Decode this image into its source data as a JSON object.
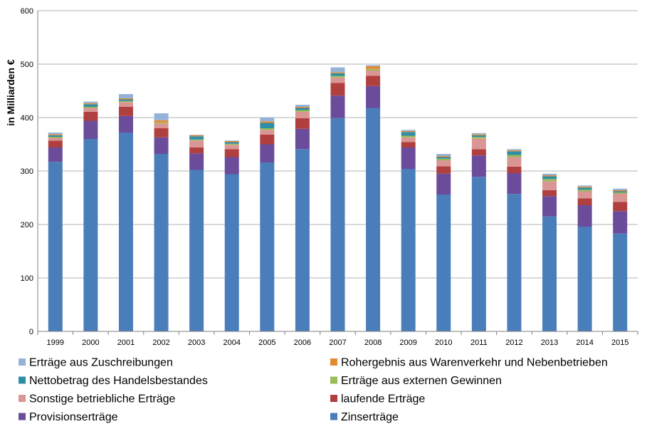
{
  "chart_data": {
    "type": "bar",
    "stacked": true,
    "ylabel": "in Milliarden €",
    "ylim": [
      0,
      600
    ],
    "yticks": [
      0,
      100,
      200,
      300,
      400,
      500,
      600
    ],
    "categories": [
      "1999",
      "2000",
      "2001",
      "2002",
      "2003",
      "2004",
      "2005",
      "2006",
      "2007",
      "2008",
      "2009",
      "2010",
      "2011",
      "2012",
      "2013",
      "2014",
      "2015"
    ],
    "series": [
      {
        "name": "Zinserträge",
        "color": "#4A7EBB",
        "values": [
          317,
          360,
          372,
          332,
          302,
          294,
          316,
          341,
          399,
          418,
          304,
          256,
          289,
          257,
          215,
          196,
          183
        ]
      },
      {
        "name": "Provisionserträge",
        "color": "#6B4C9A",
        "values": [
          27,
          34,
          31,
          31,
          31,
          32,
          34,
          38,
          42,
          41,
          40,
          39,
          40,
          39,
          38,
          40,
          42
        ]
      },
      {
        "name": "laufende Erträge",
        "color": "#B03F3F",
        "values": [
          13,
          17,
          17,
          17,
          11,
          15,
          18,
          20,
          24,
          19,
          10,
          14,
          12,
          12,
          11,
          13,
          17
        ]
      },
      {
        "name": "Sonstige betriebliche Erträge",
        "color": "#D99694",
        "values": [
          5,
          7,
          9,
          9,
          13,
          8,
          9,
          12,
          10,
          10,
          9,
          11,
          20,
          18,
          17,
          13,
          16
        ]
      },
      {
        "name": "Erträge aus externen Gewinnen",
        "color": "#9BBB59",
        "values": [
          2,
          2,
          2,
          2,
          2,
          2,
          3,
          3,
          3,
          3,
          3,
          3,
          3,
          4,
          4,
          3,
          2
        ]
      },
      {
        "name": "Nettobetrag des Handelsbestandes",
        "color": "#2E8FA7",
        "values": [
          3,
          5,
          3,
          0,
          6,
          3,
          10,
          4,
          5,
          0,
          7,
          3,
          3,
          7,
          5,
          4,
          2
        ]
      },
      {
        "name": "Rohergebnis aus Warenverkehr und Nebenbetrieben",
        "color": "#E38A34",
        "values": [
          2,
          2,
          2,
          4,
          2,
          2,
          3,
          2,
          2,
          5,
          2,
          2,
          2,
          2,
          2,
          2,
          2
        ]
      },
      {
        "name": "Erträge aus Zuschreibungen",
        "color": "#95B3D7",
        "values": [
          3,
          3,
          8,
          13,
          1,
          1,
          7,
          4,
          9,
          2,
          2,
          4,
          2,
          2,
          3,
          2,
          3
        ]
      }
    ],
    "legend_order": [
      "Erträge aus Zuschreibungen",
      "Rohergebnis aus Warenverkehr und Nebenbetrieben",
      "Nettobetrag des Handelsbestandes",
      "Erträge aus externen Gewinnen",
      "Sonstige betriebliche Erträge",
      "laufende Erträge",
      "Provisionserträge",
      "Zinserträge"
    ]
  }
}
